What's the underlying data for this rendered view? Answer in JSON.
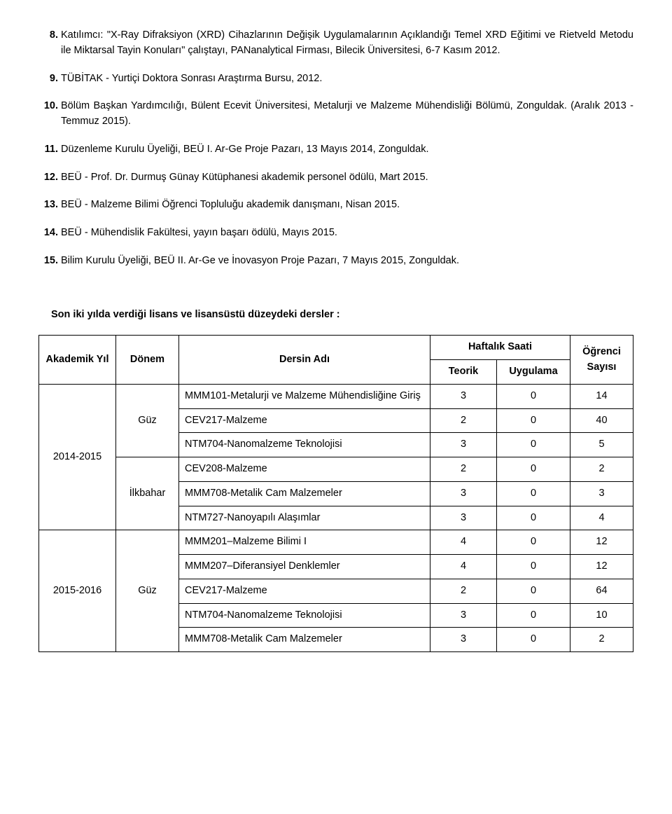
{
  "items": [
    "Katılımcı: \"X-Ray Difraksiyon (XRD) Cihazlarının Değişik Uygulamalarının Açıklandığı Temel XRD Eğitimi ve Rietveld Metodu ile Miktarsal Tayin Konuları\" çalıştayı, PANanalytical Firması, Bilecik Üniversitesi, 6-7 Kasım 2012.",
    "TÜBİTAK - Yurtiçi Doktora Sonrası Araştırma Bursu, 2012.",
    "Bölüm Başkan Yardımcılığı, Bülent Ecevit Üniversitesi, Metalurji ve Malzeme Mühendisliği Bölümü, Zonguldak. (Aralık 2013 - Temmuz 2015).",
    "Düzenleme Kurulu Üyeliği, BEÜ I. Ar-Ge Proje Pazarı, 13 Mayıs 2014, Zonguldak.",
    "BEÜ - Prof. Dr. Durmuş Günay Kütüphanesi akademik personel ödülü, Mart 2015.",
    "BEÜ - Malzeme Bilimi Öğrenci Topluluğu akademik danışmanı, Nisan 2015.",
    "BEÜ - Mühendislik Fakültesi, yayın başarı ödülü, Mayıs 2015.",
    "Bilim Kurulu Üyeliği, BEÜ II. Ar-Ge ve İnovasyon Proje Pazarı, 7 Mayıs 2015, Zonguldak."
  ],
  "section_title": "Son iki yılda verdiği lisans ve lisansüstü düzeydeki dersler :",
  "headers": {
    "year": "Akademik Yıl",
    "term": "Dönem",
    "course": "Dersin Adı",
    "weekly": "Haftalık Saati",
    "theory": "Teorik",
    "practice": "Uygulama",
    "students": "Öğrenci Sayısı"
  },
  "blocks": [
    {
      "year": "2014-2015",
      "terms": [
        {
          "term": "Güz",
          "rows": [
            {
              "name": "MMM101-Metalurji ve Malzeme Mühendisliğine Giriş",
              "t": "3",
              "u": "0",
              "s": "14"
            },
            {
              "name": "CEV217-Malzeme",
              "t": "2",
              "u": "0",
              "s": "40"
            },
            {
              "name": "NTM704-Nanomalzeme Teknolojisi",
              "t": "3",
              "u": "0",
              "s": "5"
            }
          ]
        },
        {
          "term": "İlkbahar",
          "rows": [
            {
              "name": "CEV208-Malzeme",
              "t": "2",
              "u": "0",
              "s": "2"
            },
            {
              "name": "MMM708-Metalik Cam Malzemeler",
              "t": "3",
              "u": "0",
              "s": "3"
            },
            {
              "name": "NTM727-Nanoyapılı Alaşımlar",
              "t": "3",
              "u": "0",
              "s": "4"
            }
          ]
        }
      ]
    },
    {
      "year": "2015-2016",
      "terms": [
        {
          "term": "Güz",
          "rows": [
            {
              "name": "MMM201–Malzeme Bilimi I",
              "t": "4",
              "u": "0",
              "s": "12"
            },
            {
              "name": "MMM207–Diferansiyel Denklemler",
              "t": "4",
              "u": "0",
              "s": "12"
            },
            {
              "name": "CEV217-Malzeme",
              "t": "2",
              "u": "0",
              "s": "64"
            },
            {
              "name": "NTM704-Nanomalzeme Teknolojisi",
              "t": "3",
              "u": "0",
              "s": "10"
            },
            {
              "name": "MMM708-Metalik Cam Malzemeler",
              "t": "3",
              "u": "0",
              "s": "2"
            }
          ]
        }
      ]
    }
  ]
}
